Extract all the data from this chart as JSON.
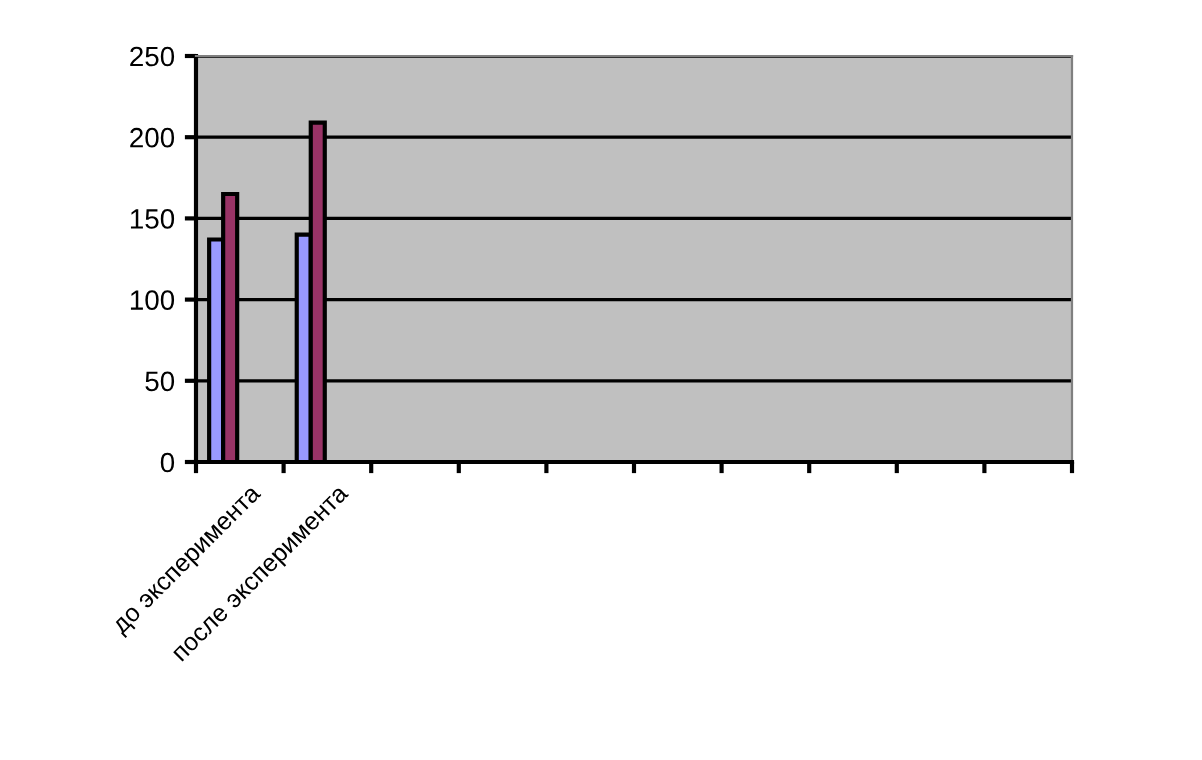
{
  "chart_data": {
    "type": "bar",
    "categories": [
      "до эксперимента",
      "после эксперимента",
      null,
      null,
      null,
      null,
      null,
      null,
      null,
      null
    ],
    "series": [
      {
        "color": "#9999ff",
        "values": [
          137,
          140,
          null,
          null,
          null,
          null,
          null,
          null,
          null,
          null
        ]
      },
      {
        "color": "#993366",
        "values": [
          165,
          209,
          null,
          null,
          null,
          null,
          null,
          null,
          null,
          null
        ]
      }
    ],
    "ylim": [
      0,
      250
    ],
    "yticks": [
      0,
      50,
      100,
      150,
      200,
      250
    ],
    "grid": "y",
    "legend": false
  }
}
